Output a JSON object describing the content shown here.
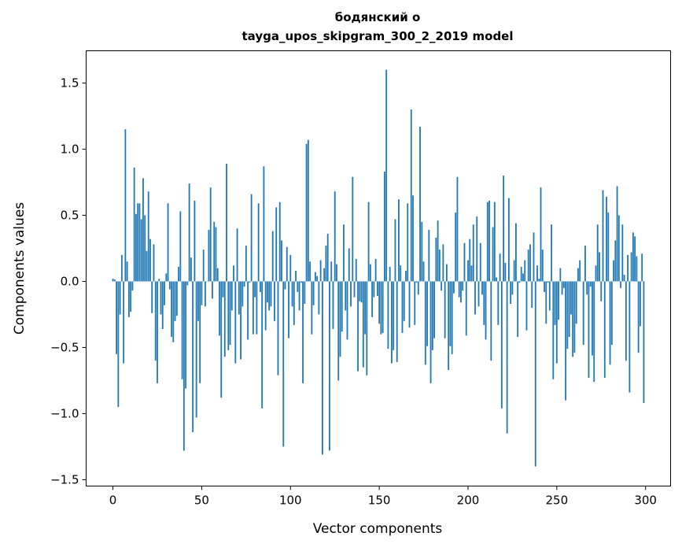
{
  "chart_data": {
    "type": "bar",
    "title_line1": "бодянский о",
    "title_line2": "tayga_upos_skipgram_300_2_2019 model",
    "xlabel": "Vector components",
    "ylabel": "Components values",
    "xlim": [
      -15.1,
      314.1
    ],
    "ylim": [
      -1.548,
      1.744
    ],
    "xticks": [
      0,
      50,
      100,
      150,
      200,
      250,
      300
    ],
    "xtick_labels": [
      "0",
      "50",
      "100",
      "150",
      "200",
      "250",
      "300"
    ],
    "yticks": [
      -1.5,
      -1.0,
      -0.5,
      0.0,
      0.5,
      1.0,
      1.5
    ],
    "ytick_labels": [
      "−1.5",
      "−1.0",
      "−0.5",
      "0.0",
      "0.5",
      "1.0",
      "1.5"
    ],
    "grid": false,
    "bar_color": "#1f77b4",
    "values": [
      0.02,
      0.015,
      -0.55,
      -0.95,
      -0.25,
      0.2,
      -0.62,
      1.15,
      0.15,
      -0.27,
      -0.23,
      -0.07,
      0.86,
      0.51,
      0.59,
      0.59,
      0.47,
      0.78,
      0.5,
      0.23,
      0.68,
      0.32,
      -0.24,
      0.28,
      -0.6,
      -0.77,
      0.02,
      -0.25,
      -0.36,
      -0.18,
      0.06,
      0.59,
      -0.06,
      -0.42,
      -0.46,
      -0.3,
      -0.26,
      0.11,
      0.53,
      -0.74,
      -1.28,
      -0.81,
      -0.03,
      0.74,
      0.18,
      -1.14,
      0.61,
      -1.03,
      -0.3,
      -0.77,
      -0.18,
      0.24,
      -0.19,
      0.0,
      0.39,
      0.71,
      -0.13,
      0.45,
      0.41,
      0.1,
      -0.41,
      -0.88,
      -0.12,
      -0.57,
      0.89,
      -0.52,
      -0.48,
      -0.22,
      0.12,
      -0.62,
      0.4,
      -0.25,
      -0.59,
      -0.19,
      -0.04,
      0.27,
      -0.44,
      -0.01,
      0.66,
      -0.4,
      -0.12,
      -0.4,
      0.59,
      -0.08,
      -0.96,
      0.87,
      -0.37,
      -0.16,
      -0.22,
      -0.19,
      0.38,
      -0.3,
      0.56,
      -0.71,
      0.6,
      0.31,
      -1.25,
      -0.06,
      0.26,
      -0.43,
      0.2,
      -0.19,
      -0.33,
      0.08,
      -0.08,
      -0.22,
      -0.01,
      -0.77,
      -0.17,
      1.04,
      1.07,
      0.15,
      -0.4,
      -0.18,
      0.07,
      0.04,
      -0.25,
      0.16,
      -1.31,
      0.1,
      0.27,
      0.36,
      -1.28,
      0.15,
      -0.36,
      0.68,
      0.13,
      -0.75,
      -0.57,
      -0.38,
      0.43,
      -0.22,
      -0.44,
      0.25,
      -0.19,
      0.79,
      -0.12,
      0.17,
      -0.68,
      -0.15,
      -0.16,
      -0.65,
      -0.4,
      -0.71,
      0.6,
      0.13,
      -0.27,
      -0.12,
      0.17,
      -0.11,
      -0.32,
      -0.4,
      -0.39,
      0.83,
      1.6,
      -0.51,
      0.11,
      -0.62,
      -0.52,
      0.47,
      -0.61,
      0.62,
      0.12,
      -0.39,
      -0.3,
      0.08,
      0.59,
      -0.35,
      1.3,
      0.65,
      -0.33,
      -0.01,
      -0.1,
      1.17,
      0.45,
      0.15,
      -0.63,
      -0.49,
      0.39,
      -0.77,
      -0.52,
      -0.43,
      0.33,
      0.46,
      0.24,
      -0.07,
      0.28,
      -0.43,
      0.13,
      -0.67,
      -0.49,
      -0.55,
      -0.09,
      0.52,
      0.79,
      -0.12,
      -0.16,
      -0.07,
      0.29,
      -0.41,
      0.16,
      0.32,
      0.12,
      0.43,
      -0.25,
      0.49,
      -0.19,
      0.29,
      -0.1,
      -0.33,
      -0.44,
      0.6,
      0.61,
      -0.6,
      0.41,
      0.6,
      0.03,
      -0.33,
      0.21,
      -0.96,
      0.8,
      0.14,
      -1.15,
      0.63,
      -0.17,
      -0.1,
      0.16,
      0.44,
      -0.42,
      -0.01,
      0.11,
      0.06,
      0.16,
      -0.37,
      0.24,
      0.28,
      -0.2,
      0.37,
      -1.4,
      0.12,
      0.02,
      0.71,
      0.24,
      -0.08,
      -0.32,
      -0.01,
      -0.22,
      0.43,
      -0.74,
      -0.33,
      -0.62,
      -0.29,
      0.1,
      -0.1,
      -0.05,
      -0.9,
      -0.51,
      -0.42,
      -0.25,
      -0.57,
      -0.54,
      -0.32,
      0.1,
      0.16,
      0.0,
      -0.48,
      0.27,
      -0.1,
      -0.73,
      -0.04,
      -0.56,
      -0.76,
      0.12,
      0.43,
      0.22,
      -0.15,
      0.69,
      -0.73,
      0.64,
      0.52,
      -0.63,
      -0.48,
      0.16,
      0.31,
      0.72,
      0.5,
      -0.05,
      0.43,
      0.05,
      -0.6,
      0.2,
      -0.84,
      0.22,
      0.37,
      0.34,
      0.19,
      -0.54,
      -0.34,
      0.21,
      -0.92
    ]
  }
}
